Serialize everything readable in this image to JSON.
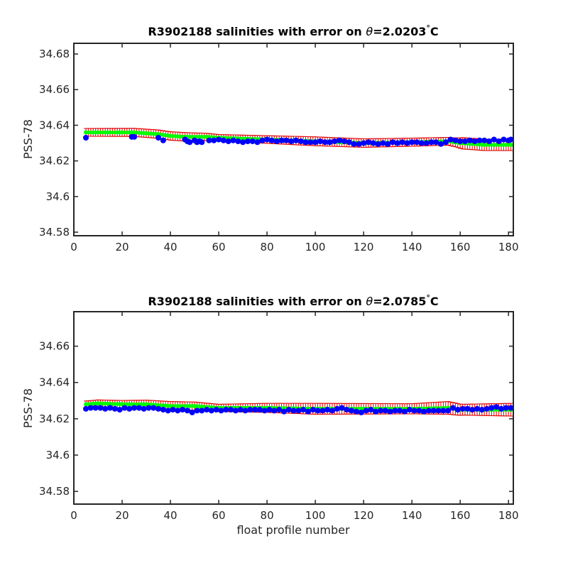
{
  "chart_data": [
    {
      "type": "scatter",
      "title_prefix": "R3902188 salinities with error on ",
      "title_theta": "θ",
      "title_value": "=2.0203",
      "title_degree": "°",
      "title_unit": "C",
      "xlabel": "",
      "ylabel": "PSS-78",
      "xlim": [
        0,
        182
      ],
      "ylim": [
        34.578,
        34.686
      ],
      "xticks": [
        "0",
        "20",
        "40",
        "60",
        "80",
        "100",
        "120",
        "140",
        "160",
        "180"
      ],
      "yticks": [
        "34.58",
        "34.6",
        "34.62",
        "34.64",
        "34.66",
        "34.68"
      ],
      "series": [
        {
          "role": "mapped",
          "color": "#00ff00",
          "points": [
            [
              5,
              34.636
            ],
            [
              10,
              34.636
            ],
            [
              20,
              34.636
            ],
            [
              25,
              34.636
            ],
            [
              30,
              34.6355
            ],
            [
              35,
              34.635
            ],
            [
              40,
              34.634
            ],
            [
              46,
              34.6335
            ],
            [
              55,
              34.6335
            ],
            [
              60,
              34.633
            ],
            [
              80,
              34.632
            ],
            [
              100,
              34.631
            ],
            [
              120,
              34.63
            ],
            [
              140,
              34.6305
            ],
            [
              155,
              34.631
            ],
            [
              160,
              34.63
            ],
            [
              170,
              34.629
            ],
            [
              181,
              34.629
            ]
          ]
        },
        {
          "role": "error",
          "color": "#e00000",
          "band": [
            [
              5,
              0.0022
            ],
            [
              46,
              0.0024
            ],
            [
              60,
              0.0018
            ],
            [
              100,
              0.0025
            ],
            [
              155,
              0.0022
            ],
            [
              158,
              0.0025
            ],
            [
              161,
              0.0032
            ],
            [
              181,
              0.0032
            ]
          ]
        },
        {
          "role": "float",
          "color": "#0000ff",
          "points": [
            [
              5,
              34.633
            ],
            [
              24,
              34.6335
            ],
            [
              25,
              34.6335
            ],
            [
              35,
              34.633
            ],
            [
              37,
              34.6315
            ],
            [
              46,
              34.632
            ],
            [
              47,
              34.631
            ],
            [
              48,
              34.6305
            ],
            [
              50,
              34.6315
            ],
            [
              51,
              34.6305
            ],
            [
              52,
              34.631
            ],
            [
              53,
              34.6305
            ],
            [
              56,
              34.6315
            ],
            [
              58,
              34.6315
            ],
            [
              60,
              34.632
            ],
            [
              62,
              34.6315
            ],
            [
              64,
              34.631
            ],
            [
              66,
              34.6315
            ],
            [
              68,
              34.631
            ],
            [
              70,
              34.6305
            ],
            [
              72,
              34.631
            ],
            [
              74,
              34.631
            ],
            [
              76,
              34.6305
            ],
            [
              78,
              34.6315
            ],
            [
              80,
              34.632
            ],
            [
              82,
              34.6315
            ],
            [
              84,
              34.631
            ],
            [
              86,
              34.6315
            ],
            [
              88,
              34.6315
            ],
            [
              90,
              34.631
            ],
            [
              92,
              34.6315
            ],
            [
              94,
              34.631
            ],
            [
              96,
              34.6305
            ],
            [
              98,
              34.6305
            ],
            [
              100,
              34.6305
            ],
            [
              102,
              34.631
            ],
            [
              104,
              34.6305
            ],
            [
              106,
              34.6305
            ],
            [
              108,
              34.631
            ],
            [
              110,
              34.6315
            ],
            [
              112,
              34.631
            ],
            [
              114,
              34.6305
            ],
            [
              116,
              34.6295
            ],
            [
              118,
              34.6295
            ],
            [
              120,
              34.63
            ],
            [
              122,
              34.6305
            ],
            [
              124,
              34.63
            ],
            [
              126,
              34.6295
            ],
            [
              128,
              34.63
            ],
            [
              130,
              34.6295
            ],
            [
              132,
              34.6305
            ],
            [
              134,
              34.63
            ],
            [
              136,
              34.6305
            ],
            [
              138,
              34.63
            ],
            [
              140,
              34.6305
            ],
            [
              142,
              34.6305
            ],
            [
              144,
              34.63
            ],
            [
              146,
              34.63
            ],
            [
              148,
              34.6305
            ],
            [
              150,
              34.6305
            ],
            [
              152,
              34.6295
            ],
            [
              154,
              34.6305
            ],
            [
              156,
              34.632
            ],
            [
              158,
              34.6315
            ],
            [
              160,
              34.631
            ],
            [
              162,
              34.631
            ],
            [
              164,
              34.6315
            ],
            [
              166,
              34.631
            ],
            [
              168,
              34.6315
            ],
            [
              170,
              34.6315
            ],
            [
              172,
              34.631
            ],
            [
              174,
              34.632
            ],
            [
              176,
              34.631
            ],
            [
              178,
              34.632
            ],
            [
              180,
              34.6315
            ],
            [
              181,
              34.632
            ]
          ]
        }
      ]
    },
    {
      "type": "scatter",
      "title_prefix": "R3902188 salinities with error on ",
      "title_theta": "θ",
      "title_value": "=2.0785",
      "title_degree": "°",
      "title_unit": "C",
      "xlabel": "float profile number",
      "ylabel": "PSS-78",
      "xlim": [
        0,
        182
      ],
      "ylim": [
        34.573,
        34.679
      ],
      "xticks": [
        "0",
        "20",
        "40",
        "60",
        "80",
        "100",
        "120",
        "140",
        "160",
        "180"
      ],
      "yticks": [
        "34.58",
        "34.6",
        "34.62",
        "34.64",
        "34.66"
      ],
      "series": [
        {
          "role": "mapped",
          "color": "#00ff00",
          "points": [
            [
              5,
              34.628
            ],
            [
              10,
              34.6285
            ],
            [
              20,
              34.628
            ],
            [
              30,
              34.628
            ],
            [
              40,
              34.627
            ],
            [
              50,
              34.627
            ],
            [
              60,
              34.626
            ],
            [
              80,
              34.626
            ],
            [
              100,
              34.6255
            ],
            [
              120,
              34.6255
            ],
            [
              140,
              34.6255
            ],
            [
              155,
              34.626
            ],
            [
              160,
              34.625
            ],
            [
              170,
              34.625
            ],
            [
              181,
              34.625
            ]
          ]
        },
        {
          "role": "error",
          "color": "#e00000",
          "band": [
            [
              5,
              0.0018
            ],
            [
              40,
              0.0025
            ],
            [
              60,
              0.002
            ],
            [
              100,
              0.003
            ],
            [
              140,
              0.0028
            ],
            [
              155,
              0.0035
            ],
            [
              158,
              0.0033
            ],
            [
              161,
              0.003
            ],
            [
              181,
              0.0035
            ]
          ]
        },
        {
          "role": "float",
          "color": "#0000ff",
          "points": [
            [
              5,
              34.6255
            ],
            [
              7,
              34.626
            ],
            [
              9,
              34.626
            ],
            [
              11,
              34.626
            ],
            [
              13,
              34.6255
            ],
            [
              15,
              34.626
            ],
            [
              17,
              34.6255
            ],
            [
              19,
              34.625
            ],
            [
              21,
              34.626
            ],
            [
              23,
              34.6255
            ],
            [
              25,
              34.626
            ],
            [
              27,
              34.626
            ],
            [
              29,
              34.6255
            ],
            [
              31,
              34.626
            ],
            [
              33,
              34.626
            ],
            [
              35,
              34.6255
            ],
            [
              37,
              34.625
            ],
            [
              39,
              34.6245
            ],
            [
              41,
              34.625
            ],
            [
              43,
              34.6245
            ],
            [
              45,
              34.625
            ],
            [
              47,
              34.6245
            ],
            [
              49,
              34.6235
            ],
            [
              51,
              34.6245
            ],
            [
              53,
              34.6245
            ],
            [
              55,
              34.625
            ],
            [
              57,
              34.6245
            ],
            [
              59,
              34.625
            ],
            [
              61,
              34.6245
            ],
            [
              63,
              34.625
            ],
            [
              65,
              34.625
            ],
            [
              67,
              34.6245
            ],
            [
              69,
              34.625
            ],
            [
              71,
              34.6245
            ],
            [
              73,
              34.625
            ],
            [
              75,
              34.625
            ],
            [
              77,
              34.625
            ],
            [
              79,
              34.6245
            ],
            [
              81,
              34.625
            ],
            [
              83,
              34.6245
            ],
            [
              85,
              34.625
            ],
            [
              87,
              34.624
            ],
            [
              89,
              34.625
            ],
            [
              91,
              34.6245
            ],
            [
              93,
              34.6245
            ],
            [
              95,
              34.625
            ],
            [
              97,
              34.624
            ],
            [
              99,
              34.625
            ],
            [
              101,
              34.6245
            ],
            [
              103,
              34.6245
            ],
            [
              105,
              34.625
            ],
            [
              107,
              34.6245
            ],
            [
              109,
              34.6255
            ],
            [
              111,
              34.626
            ],
            [
              113,
              34.625
            ],
            [
              115,
              34.6245
            ],
            [
              117,
              34.624
            ],
            [
              119,
              34.6235
            ],
            [
              121,
              34.6245
            ],
            [
              123,
              34.625
            ],
            [
              125,
              34.624
            ],
            [
              127,
              34.6245
            ],
            [
              129,
              34.6245
            ],
            [
              131,
              34.624
            ],
            [
              133,
              34.6245
            ],
            [
              135,
              34.6245
            ],
            [
              137,
              34.624
            ],
            [
              139,
              34.625
            ],
            [
              141,
              34.6245
            ],
            [
              143,
              34.6245
            ],
            [
              145,
              34.624
            ],
            [
              147,
              34.6245
            ],
            [
              149,
              34.6245
            ],
            [
              151,
              34.6245
            ],
            [
              153,
              34.6245
            ],
            [
              155,
              34.6245
            ],
            [
              157,
              34.626
            ],
            [
              159,
              34.625
            ],
            [
              161,
              34.6255
            ],
            [
              163,
              34.6255
            ],
            [
              165,
              34.625
            ],
            [
              167,
              34.6255
            ],
            [
              169,
              34.625
            ],
            [
              171,
              34.6255
            ],
            [
              173,
              34.626
            ],
            [
              175,
              34.6265
            ],
            [
              177,
              34.6255
            ],
            [
              179,
              34.626
            ],
            [
              181,
              34.626
            ]
          ]
        }
      ]
    }
  ]
}
